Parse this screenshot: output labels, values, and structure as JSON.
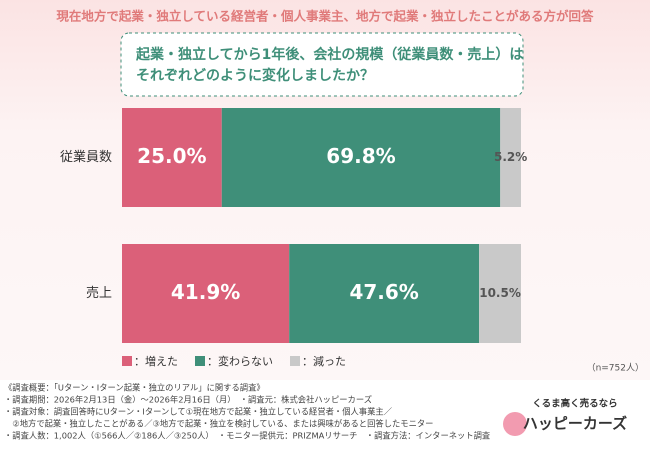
{
  "chart_data": {
    "type": "stacked-bar-horizontal",
    "header": "現在地方で起業・独立している経営者・個人事業主、地方で起業・独立したことがある方が回答",
    "question": [
      "起業・独立してから1年後、会社の規模（従業員数・売上）は",
      "それぞれどのように変化しましたか？"
    ],
    "categories": [
      "従業員数",
      "売上"
    ],
    "series": [
      {
        "name": "：増えた",
        "color": "#db6079",
        "values": [
          25.0,
          41.9
        ],
        "value_labels": [
          "25.0%",
          "41.9%"
        ]
      },
      {
        "name": "：変わらない",
        "color": "#3f8f79",
        "values": [
          69.8,
          47.6
        ],
        "value_labels": [
          "69.8%",
          "47.6%"
        ]
      },
      {
        "name": "：減った",
        "color": "#c9c9c9",
        "values": [
          5.2,
          10.5
        ],
        "value_labels": [
          "5.2%",
          "10.5%"
        ]
      }
    ],
    "xlim": [
      0,
      100
    ],
    "sample_note": "（n=752人）",
    "notes": [
      "《調査概要：「Uターン・Iターン起業・独立のリアル」に関する調査》",
      "・調査期間：2026年2月13日（金）〜2026年2月16日（月）　・調査元：株式会社ハッピーカーズ",
      "・調査対象：調査回答時にUターン・Iターンして①現在地方で起業・独立している経営者・個人事業主／",
      "　②地方で起業・独立したことがある／③地方で起業・独立を検討している、または興味があると回答したモニター",
      "・調査人数：1,002人（①566人／②186人／③250人）　・モニター提供元：PRIZMAリサーチ　・調査方法：インターネット調査"
    ],
    "logo": {
      "tagline": "くるま高く売るなら",
      "brand": "ハッピーカーズ"
    }
  }
}
